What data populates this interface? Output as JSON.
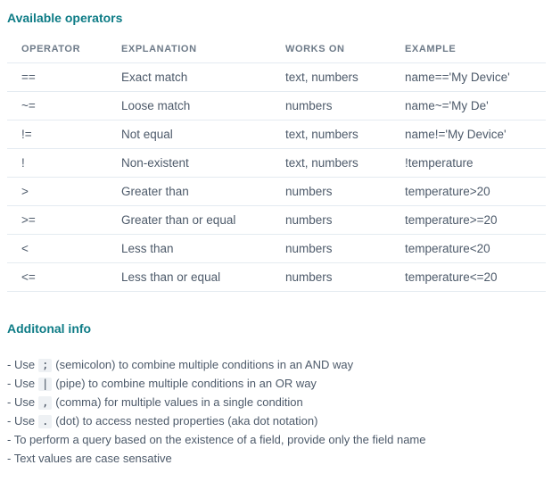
{
  "colors": {
    "heading_teal": "#0e7c86",
    "body_text": "#4d5a6a",
    "table_header_text": "#6d7a88",
    "divider": "#e4ebf1",
    "code_chip_bg": "#eef1f4"
  },
  "sections": {
    "operators": {
      "title": "Available operators",
      "columns": [
        "OPERATOR",
        "EXPLANATION",
        "WORKS ON",
        "EXAMPLE"
      ],
      "rows": [
        {
          "operator": "==",
          "explanation": "Exact match",
          "works_on": "text, numbers",
          "example": "name=='My Device'"
        },
        {
          "operator": "~=",
          "explanation": "Loose match",
          "works_on": "numbers",
          "example": "name~='My De'"
        },
        {
          "operator": "!=",
          "explanation": "Not equal",
          "works_on": "text, numbers",
          "example": "name!='My Device'"
        },
        {
          "operator": "!",
          "explanation": "Non-existent",
          "works_on": "text, numbers",
          "example": "!temperature"
        },
        {
          "operator": ">",
          "explanation": "Greater than",
          "works_on": "numbers",
          "example": "temperature>20"
        },
        {
          "operator": ">=",
          "explanation": "Greater than or equal",
          "works_on": "numbers",
          "example": "temperature>=20"
        },
        {
          "operator": "<",
          "explanation": "Less than",
          "works_on": "numbers",
          "example": "temperature<20"
        },
        {
          "operator": "<=",
          "explanation": "Less than or equal",
          "works_on": "numbers",
          "example": "temperature<=20"
        }
      ]
    },
    "additional": {
      "title": "Additonal info",
      "items": [
        {
          "pre": "- Use",
          "code": ";",
          "post": "(semicolon) to combine multiple conditions in an AND way"
        },
        {
          "pre": "- Use",
          "code": "|",
          "post": "(pipe) to combine multiple conditions in an OR way"
        },
        {
          "pre": "- Use",
          "code": ",",
          "post": "(comma) for multiple values in a single condition"
        },
        {
          "pre": "- Use",
          "code": ".",
          "post": "(dot) to access nested properties (aka dot notation)"
        },
        {
          "pre": "- To perform a query based on the existence of a field, provide only the field name"
        },
        {
          "pre": "- Text values are case sensative"
        }
      ]
    }
  }
}
